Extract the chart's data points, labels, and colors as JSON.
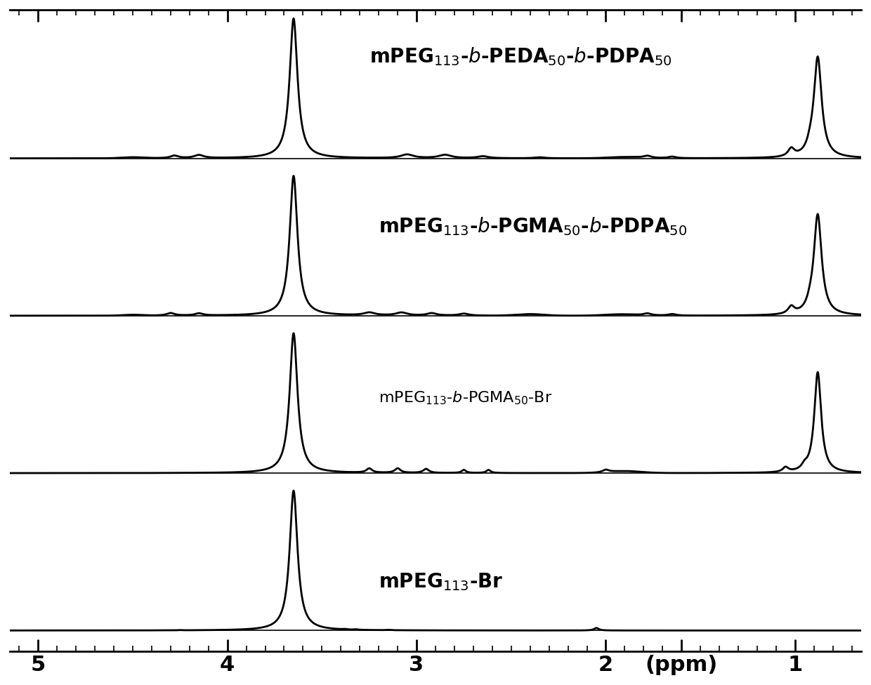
{
  "xlim": [
    5.15,
    0.65
  ],
  "xtick_positions": [
    5,
    4,
    3,
    2,
    1.6,
    1
  ],
  "xtick_labels": [
    "5",
    "4",
    "3",
    "2",
    "(ppm)",
    "1"
  ],
  "background_color": "#ffffff",
  "line_color": "#000000",
  "line_width": 2.0,
  "labels": [
    "mPEG$_{113}$-$b$-PEDA$_{50}$-$b$-PDPA$_{50}$",
    "mPEG$_{113}$-$b$-PGMA$_{50}$-$b$-PDPA$_{50}$",
    "mPEG$_{113}$-$b$-PGMA$_{50}$-Br",
    "mPEG$_{113}$-Br"
  ],
  "label_bold": [
    true,
    true,
    false,
    true
  ],
  "label_fontsize": [
    20,
    20,
    16,
    20
  ],
  "offsets": [
    2.7,
    1.8,
    0.9,
    0.0
  ],
  "figsize": [
    12.4,
    9.76
  ],
  "dpi": 100
}
